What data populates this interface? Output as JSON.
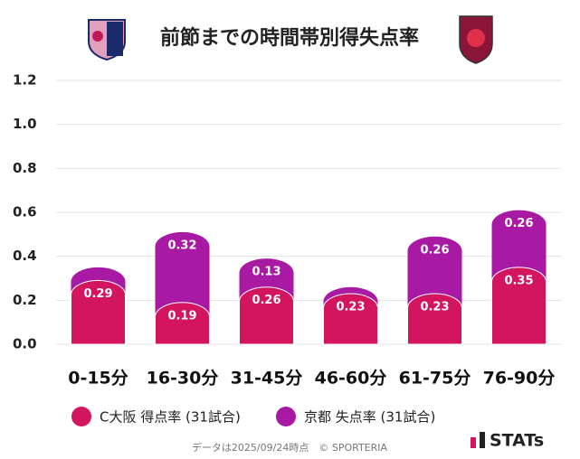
{
  "chart_data": {
    "type": "stacked-bar",
    "title": "前節までの時間帯別得失点率",
    "categories": [
      "0-15分",
      "16-30分",
      "31-45分",
      "46-60分",
      "61-75分",
      "76-90分"
    ],
    "series": [
      {
        "name": "C大阪 得点率 (31試合)",
        "color": "#d3145f",
        "values": [
          0.29,
          0.19,
          0.26,
          0.23,
          0.23,
          0.35
        ],
        "value_labels": [
          "0.29",
          "0.19",
          "0.26",
          "0.23",
          "0.23",
          "0.35"
        ]
      },
      {
        "name": "京都 失点率 (31試合)",
        "color": "#a81aa3",
        "values": [
          0.06,
          0.32,
          0.13,
          0.03,
          0.26,
          0.26
        ],
        "value_labels": [
          null,
          "0.32",
          "0.13",
          null,
          "0.26",
          "0.26"
        ]
      }
    ],
    "ylim": [
      0,
      1.2
    ],
    "yticks": [
      {
        "value": 0,
        "label": "0.0"
      },
      0.2,
      0.4,
      0.6,
      0.8,
      {
        "value": 1,
        "label": "1.0"
      },
      1.2
    ],
    "grid": true,
    "legend": "bottom",
    "footer": "データは2025/09/24時点　© SPORTERIA",
    "brand": "STATs"
  }
}
